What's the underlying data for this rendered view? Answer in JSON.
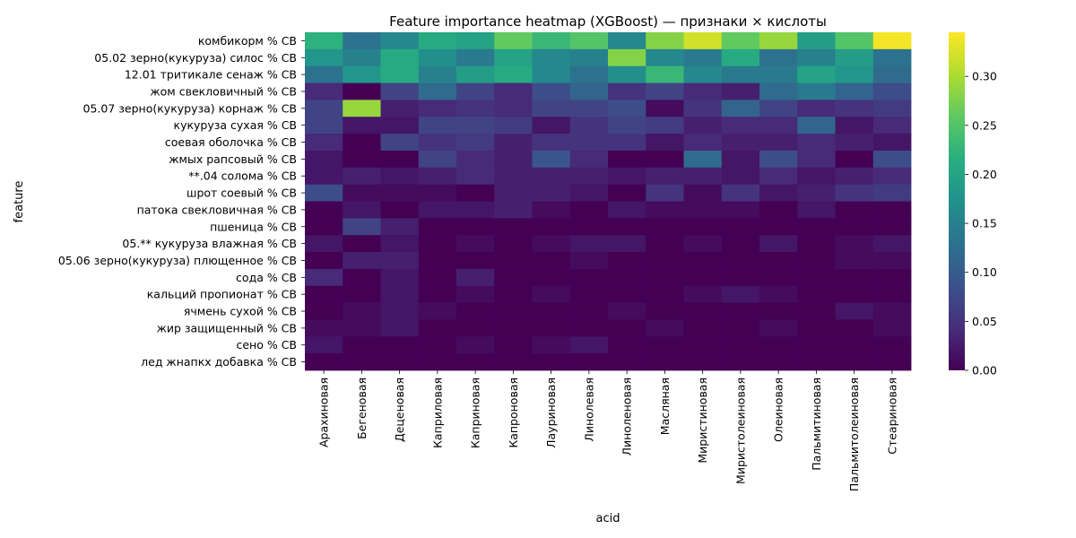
{
  "chart_data": {
    "type": "heatmap",
    "title": "Feature importance heatmap (XGBoost) — признаки × кислоты",
    "xlabel": "acid",
    "ylabel": "feature",
    "colormap": "viridis",
    "zlim": [
      0,
      0.345
    ],
    "colorbar_ticks": [
      "0.00",
      "0.05",
      "0.10",
      "0.15",
      "0.20",
      "0.25",
      "0.30"
    ],
    "colorbar_tick_values": [
      0,
      0.05,
      0.1,
      0.15,
      0.2,
      0.25,
      0.3
    ],
    "columns": [
      "Арахиновая",
      "Бегеновая",
      "Деценовая",
      "Каприловая",
      "Каприновая",
      "Капроновая",
      "Лауриновая",
      "Линолевая",
      "Линоленовая",
      "Масляная",
      "Миристиновая",
      "Миристолеиновая",
      "Олеиновая",
      "Пальмитиновая",
      "Пальмитолеиновая",
      "Стеариновая"
    ],
    "rows": [
      "комбикорм % СВ",
      "05.02 зерно(кукуруза) силос % СВ",
      "12.01 тритикале сенаж % СВ",
      "жом свекловичный % СВ",
      "05.07 зерно(кукуруза) корнаж % СВ",
      "кукуруза сухая % СВ",
      "соевая оболочка % СВ",
      "жмых рапсовый % СВ",
      "**.04 солома % СВ",
      "шрот соевый % СВ",
      "патока свекловичная % СВ",
      "пшеница % СВ",
      "05.** кукуруза влажная % СВ",
      "05.06 зерно(кукуруза) плющенное % СВ",
      "сода % СВ",
      "кальций пропионат % СВ",
      "ячмень сухой % СВ",
      "жир защищенный % СВ",
      "сено % СВ",
      "лед жнапкх добавка % СВ"
    ],
    "values": [
      [
        0.22,
        0.13,
        0.16,
        0.21,
        0.2,
        0.26,
        0.23,
        0.25,
        0.16,
        0.28,
        0.32,
        0.26,
        0.29,
        0.19,
        0.25,
        0.34
      ],
      [
        0.18,
        0.15,
        0.21,
        0.17,
        0.14,
        0.2,
        0.16,
        0.15,
        0.28,
        0.16,
        0.14,
        0.21,
        0.13,
        0.15,
        0.19,
        0.13
      ],
      [
        0.13,
        0.18,
        0.21,
        0.15,
        0.19,
        0.21,
        0.16,
        0.13,
        0.17,
        0.23,
        0.16,
        0.14,
        0.14,
        0.2,
        0.18,
        0.12
      ],
      [
        0.04,
        0.0,
        0.07,
        0.12,
        0.07,
        0.04,
        0.08,
        0.11,
        0.05,
        0.07,
        0.04,
        0.03,
        0.12,
        0.14,
        0.11,
        0.08
      ],
      [
        0.07,
        0.29,
        0.03,
        0.04,
        0.05,
        0.04,
        0.07,
        0.07,
        0.08,
        0.01,
        0.05,
        0.11,
        0.07,
        0.04,
        0.05,
        0.06
      ],
      [
        0.07,
        0.02,
        0.02,
        0.07,
        0.07,
        0.06,
        0.02,
        0.05,
        0.07,
        0.06,
        0.03,
        0.04,
        0.04,
        0.11,
        0.02,
        0.04
      ],
      [
        0.04,
        0.0,
        0.07,
        0.05,
        0.06,
        0.03,
        0.05,
        0.05,
        0.05,
        0.02,
        0.04,
        0.03,
        0.03,
        0.04,
        0.03,
        0.02
      ],
      [
        0.02,
        0.0,
        0.0,
        0.07,
        0.04,
        0.03,
        0.09,
        0.04,
        0.0,
        0.0,
        0.12,
        0.02,
        0.08,
        0.04,
        0.0,
        0.08
      ],
      [
        0.02,
        0.03,
        0.02,
        0.03,
        0.04,
        0.03,
        0.03,
        0.03,
        0.02,
        0.03,
        0.03,
        0.02,
        0.04,
        0.02,
        0.03,
        0.04
      ],
      [
        0.08,
        0.01,
        0.01,
        0.01,
        0.0,
        0.03,
        0.03,
        0.02,
        0.0,
        0.05,
        0.01,
        0.05,
        0.02,
        0.03,
        0.05,
        0.06
      ],
      [
        0.0,
        0.02,
        0.0,
        0.02,
        0.02,
        0.03,
        0.01,
        0.0,
        0.02,
        0.01,
        0.01,
        0.01,
        0.0,
        0.02,
        0.0,
        0.0
      ],
      [
        0.0,
        0.07,
        0.03,
        0.0,
        0.0,
        0.0,
        0.0,
        0.0,
        0.0,
        0.0,
        0.0,
        0.0,
        0.0,
        0.0,
        0.0,
        0.0
      ],
      [
        0.02,
        0.0,
        0.02,
        0.0,
        0.01,
        0.0,
        0.01,
        0.02,
        0.02,
        0.0,
        0.01,
        0.0,
        0.02,
        0.0,
        0.01,
        0.02
      ],
      [
        0.0,
        0.03,
        0.03,
        0.0,
        0.0,
        0.0,
        0.0,
        0.01,
        0.0,
        0.0,
        0.0,
        0.0,
        0.0,
        0.0,
        0.01,
        0.01
      ],
      [
        0.04,
        0.0,
        0.02,
        0.0,
        0.03,
        0.0,
        0.0,
        0.0,
        0.0,
        0.0,
        0.0,
        0.0,
        0.0,
        0.0,
        0.0,
        0.0
      ],
      [
        0.0,
        0.0,
        0.02,
        0.0,
        0.01,
        0.0,
        0.01,
        0.0,
        0.0,
        0.0,
        0.01,
        0.02,
        0.01,
        0.0,
        0.0,
        0.0
      ],
      [
        0.0,
        0.01,
        0.02,
        0.01,
        0.0,
        0.0,
        0.0,
        0.0,
        0.01,
        0.0,
        0.0,
        0.0,
        0.0,
        0.0,
        0.02,
        0.01
      ],
      [
        0.01,
        0.01,
        0.02,
        0.0,
        0.0,
        0.0,
        0.0,
        0.0,
        0.0,
        0.01,
        0.0,
        0.0,
        0.01,
        0.0,
        0.0,
        0.01
      ],
      [
        0.02,
        0.0,
        0.0,
        0.0,
        0.01,
        0.0,
        0.01,
        0.02,
        0.0,
        0.0,
        0.0,
        0.0,
        0.0,
        0.0,
        0.0,
        0.0
      ],
      [
        0.0,
        0.0,
        0.0,
        0.0,
        0.0,
        0.0,
        0.0,
        0.0,
        0.0,
        0.0,
        0.0,
        0.0,
        0.0,
        0.0,
        0.0,
        0.0
      ]
    ]
  }
}
